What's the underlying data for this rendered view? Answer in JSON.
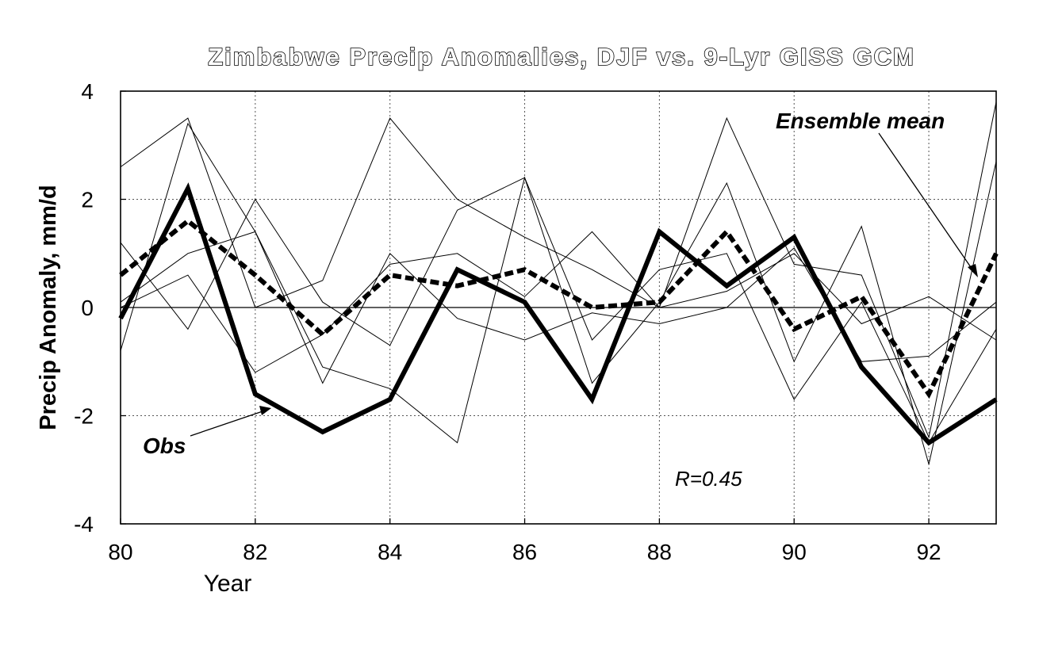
{
  "chart_data": {
    "type": "line",
    "title": "Zimbabwe Precip Anomalies, DJF vs. 9-Lyr GISS GCM",
    "xlabel": "Year",
    "ylabel": "Precip Anomaly,  mm/d",
    "xlim": [
      80,
      93
    ],
    "ylim": [
      -4,
      4
    ],
    "grid": true,
    "x": [
      80,
      81,
      82,
      83,
      84,
      85,
      86,
      87,
      88,
      89,
      90,
      91,
      92,
      93
    ],
    "x_ticks": [
      80,
      82,
      84,
      86,
      88,
      90,
      92
    ],
    "y_ticks": [
      -4,
      -2,
      0,
      2,
      4
    ],
    "series": [
      {
        "name": "Obs",
        "style": "thick-solid",
        "values": [
          -0.2,
          2.2,
          -1.6,
          -2.3,
          -1.7,
          0.7,
          0.1,
          -1.7,
          1.4,
          0.4,
          1.3,
          -1.1,
          -2.5,
          -1.7
        ]
      },
      {
        "name": "Ensemble mean",
        "style": "thick-dashed",
        "values": [
          0.6,
          1.6,
          0.6,
          -0.5,
          0.6,
          0.4,
          0.7,
          0.0,
          0.1,
          1.4,
          -0.4,
          0.2,
          -1.6,
          1.0
        ]
      },
      {
        "style": "thin",
        "values": [
          2.6,
          3.5,
          0.0,
          0.5,
          3.5,
          2.0,
          1.3,
          0.7,
          0.0,
          3.5,
          0.8,
          0.6,
          -2.4,
          3.8
        ]
      },
      {
        "style": "thin",
        "values": [
          -0.8,
          3.4,
          1.4,
          -1.1,
          -1.5,
          -2.5,
          2.4,
          -1.4,
          0.1,
          2.3,
          -1.0,
          1.5,
          -2.9,
          2.7
        ]
      },
      {
        "style": "thin",
        "values": [
          1.2,
          -0.4,
          2.0,
          0.1,
          -0.7,
          1.8,
          2.4,
          -0.6,
          0.7,
          1.0,
          -1.7,
          0.1,
          -2.5,
          -0.4
        ]
      },
      {
        "style": "thin",
        "values": [
          0.1,
          1.0,
          1.4,
          -1.4,
          1.0,
          -0.2,
          -0.6,
          -0.1,
          -0.3,
          0.0,
          1.1,
          -1.0,
          -0.9,
          0.1
        ]
      },
      {
        "style": "thin",
        "values": [
          0.0,
          0.6,
          -1.2,
          -0.5,
          0.8,
          1.0,
          0.2,
          1.4,
          0.0,
          0.3,
          1.0,
          -0.3,
          0.2,
          -0.6
        ]
      }
    ],
    "annotations": {
      "ensemble_label": "Ensemble mean",
      "obs_label": "Obs",
      "r_label": "R=0.45"
    },
    "colors": {
      "line": "#000000",
      "grid": "#555555",
      "background": "#ffffff"
    }
  }
}
